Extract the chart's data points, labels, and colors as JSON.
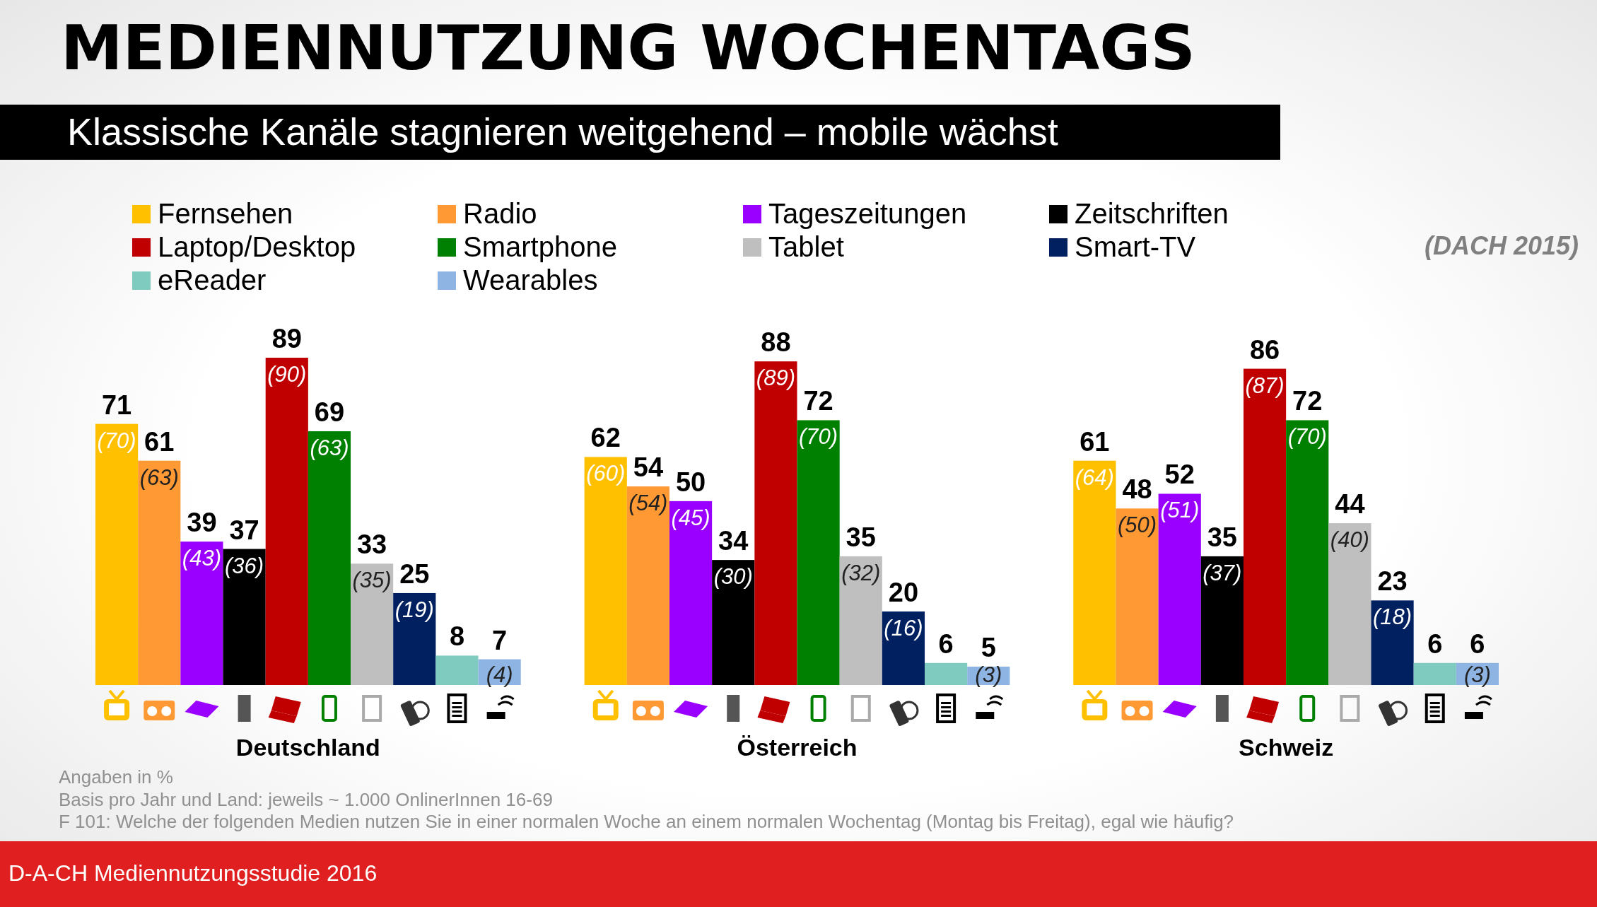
{
  "chart_data": {
    "type": "bar",
    "title": "MEDIENNUTZUNG WOCHENTAGS",
    "subtitle": "Klassische Kanäle stagnieren weitgehend – mobile wächst",
    "categories": [
      "Deutschland",
      "Österreich",
      "Schweiz"
    ],
    "series": [
      {
        "name": "Fernsehen",
        "color": "#ffc000",
        "values": [
          71,
          62,
          61
        ]
      },
      {
        "name": "Radio",
        "color": "#ff9933",
        "values": [
          61,
          54,
          48
        ]
      },
      {
        "name": "Tageszeitungen",
        "color": "#9900ff",
        "values": [
          39,
          50,
          52
        ]
      },
      {
        "name": "Zeitschriften",
        "color": "#000000",
        "values": [
          37,
          34,
          35
        ]
      },
      {
        "name": "Laptop/Desktop",
        "color": "#c00000",
        "values": [
          89,
          88,
          86
        ]
      },
      {
        "name": "Smartphone",
        "color": "#008000",
        "values": [
          69,
          72,
          72
        ]
      },
      {
        "name": "Tablet",
        "color": "#bfbfbf",
        "values": [
          33,
          35,
          44
        ]
      },
      {
        "name": "Smart-TV",
        "color": "#002060",
        "values": [
          25,
          20,
          23
        ]
      },
      {
        "name": "eReader",
        "color": "#7fcbc0",
        "values": [
          8,
          6,
          6
        ]
      },
      {
        "name": "Wearables",
        "color": "#8eb4e3",
        "values": [
          7,
          5,
          6
        ]
      }
    ],
    "data_labels": true,
    "legend": "top",
    "annotations": [
      "(DACH 2015)",
      "Angaben in %",
      "Basis pro Jahr und Land:  jeweils ~ 1.000 OnlinerInnen 16-69",
      "F 101:  Welche der folgenden Medien nutzen Sie in einer normalen Woche an einem normalen Wochentag (Montag bis Freitag), egal wie häufig?",
      "D-A-CH Mediennutzungsstudie 2016",
      "(70)",
      "(60)",
      "(64)",
      "(63)",
      "(54)",
      "(50)",
      "(43)",
      "(45)",
      "(51)",
      "(36)",
      "(30)",
      "(37)",
      "(90)",
      "(89)",
      "(87)",
      "(63)",
      "(70)",
      "(70)",
      "(35)",
      "(32)",
      "(40)",
      "(19)",
      "(16)",
      "(18)",
      null,
      null,
      null,
      "(4)",
      "(3)",
      "(3)"
    ]
  }
}
